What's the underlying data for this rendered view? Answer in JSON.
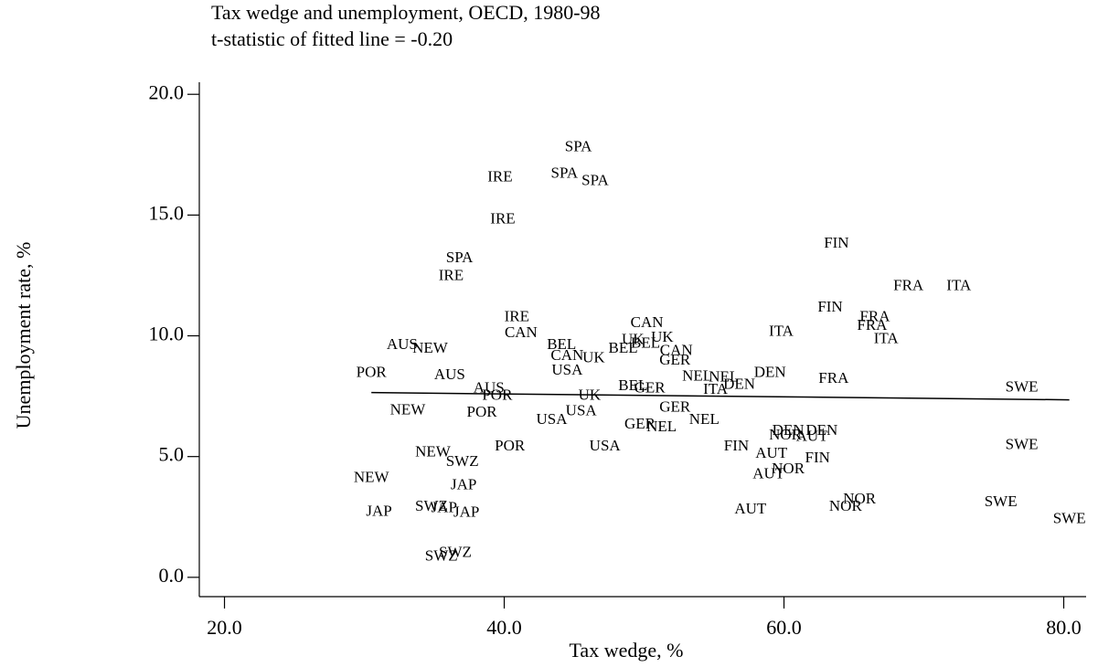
{
  "chart_data": {
    "type": "scatter",
    "title": "Tax wedge and unemployment, OECD, 1980-98",
    "subtitle": "t-statistic of fitted line = -0.20",
    "x_label": "Tax wedge, %",
    "y_label": "Unemployment rate, %",
    "xlim": [
      18.2,
      81.6
    ],
    "ylim": [
      -0.8,
      20.5
    ],
    "xticks": [
      {
        "value": 20,
        "label": "20.0"
      },
      {
        "value": 40,
        "label": "40.0"
      },
      {
        "value": 60,
        "label": "60.0"
      },
      {
        "value": 80,
        "label": "80.0"
      }
    ],
    "yticks": [
      {
        "value": 0,
        "label": "0.0"
      },
      {
        "value": 5,
        "label": "5.0"
      },
      {
        "value": 10,
        "label": "10.0"
      },
      {
        "value": 15,
        "label": "15.0"
      },
      {
        "value": 20,
        "label": "20.0"
      }
    ],
    "color": "#000000",
    "fit_line": {
      "x": [
        30.5,
        80.4
      ],
      "y": [
        7.65,
        7.35
      ]
    },
    "series": [
      {
        "labels": [
          "SPA",
          "IRE",
          "SPA",
          "SPA",
          "IRE",
          "FIN",
          "SPA",
          "IRE",
          "FRA",
          "ITA",
          "FIN",
          "IRE",
          "CAN",
          "FRA",
          "CAN",
          "ITA",
          "UK",
          "FRA",
          "ITA",
          "AUS",
          "NEW",
          "BEL",
          "UK",
          "BEL",
          "BEL",
          "CAN",
          "CAN",
          "UK",
          "GER",
          "USA",
          "POR",
          "AUS",
          "NEL",
          "NEL",
          "DEN",
          "FRA",
          "DEN",
          "ITA",
          "SWE",
          "BEL",
          "GER",
          "AUS",
          "POR",
          "NEW",
          "UK",
          "USA",
          "POR",
          "GER",
          "USA",
          "NEL",
          "GER",
          "NEL",
          "USA",
          "POR",
          "DEN",
          "NOR",
          "DEN",
          "AUT",
          "FIN",
          "AUT",
          "FIN",
          "NOR",
          "AUT",
          "SWE",
          "NEW",
          "SWZ",
          "NEW",
          "JAP",
          "JAP",
          "SWZ",
          "JAP",
          "JAP",
          "AUT",
          "NOR",
          "NOR",
          "SWE",
          "SWE",
          "SWZ",
          "SWZ"
        ],
        "x": [
          45.3,
          39.7,
          44.3,
          46.5,
          39.9,
          63.75,
          36.8,
          36.2,
          68.9,
          72.5,
          63.3,
          40.9,
          50.2,
          66.5,
          41.2,
          59.8,
          51.3,
          66.3,
          67.3,
          32.7,
          34.7,
          44.1,
          49.2,
          50.1,
          48.5,
          52.3,
          44.5,
          46.4,
          52.2,
          44.5,
          30.5,
          36.1,
          53.8,
          55.7,
          59.0,
          63.55,
          56.8,
          55.1,
          77.0,
          49.2,
          50.4,
          38.9,
          39.5,
          33.1,
          46.1,
          45.5,
          38.4,
          52.2,
          43.4,
          54.3,
          49.7,
          51.25,
          47.2,
          40.4,
          60.3,
          60.1,
          62.7,
          62.0,
          56.6,
          59.1,
          62.4,
          60.3,
          58.9,
          77.0,
          34.9,
          37.0,
          30.5,
          37.1,
          31.05,
          34.8,
          35.7,
          37.3,
          57.6,
          65.4,
          64.4,
          75.5,
          80.4,
          36.5,
          35.5
        ],
        "values": [
          17.8,
          16.55,
          16.7,
          16.4,
          14.8,
          13.8,
          13.2,
          12.45,
          12.05,
          12.05,
          11.15,
          10.75,
          10.5,
          10.75,
          10.1,
          10.15,
          9.9,
          10.4,
          9.85,
          9.6,
          9.45,
          9.6,
          9.8,
          9.65,
          9.45,
          9.35,
          9.15,
          9.05,
          8.95,
          8.55,
          8.45,
          8.35,
          8.3,
          8.25,
          8.45,
          8.2,
          7.95,
          7.75,
          7.85,
          7.9,
          7.8,
          7.8,
          7.5,
          6.9,
          7.5,
          6.85,
          6.8,
          7.0,
          6.5,
          6.5,
          6.3,
          6.2,
          5.4,
          5.4,
          6.05,
          5.85,
          6.05,
          5.8,
          5.4,
          5.1,
          4.9,
          4.45,
          4.25,
          5.45,
          5.15,
          4.75,
          4.1,
          3.8,
          2.7,
          2.9,
          2.85,
          2.65,
          2.8,
          3.2,
          2.9,
          3.1,
          2.4,
          1.0,
          0.85
        ]
      }
    ]
  }
}
